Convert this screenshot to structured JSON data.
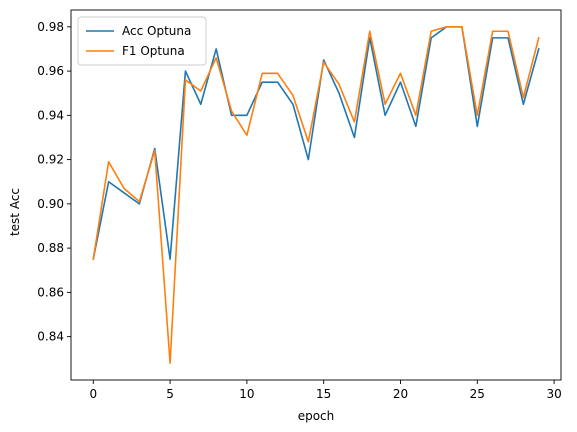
{
  "chart_data": {
    "type": "line",
    "title": "",
    "xlabel": "epoch",
    "ylabel": "test Acc",
    "xlim": [
      -1.45,
      30.45
    ],
    "ylim": [
      0.8204,
      0.9876
    ],
    "xticks": [
      0,
      5,
      10,
      15,
      20,
      25,
      30
    ],
    "xtick_labels": [
      "0",
      "5",
      "10",
      "15",
      "20",
      "25",
      "30"
    ],
    "yticks": [
      0.84,
      0.86,
      0.88,
      0.9,
      0.92,
      0.94,
      0.96,
      0.98
    ],
    "ytick_labels": [
      "0.84",
      "0.86",
      "0.88",
      "0.90",
      "0.92",
      "0.94",
      "0.96",
      "0.98"
    ],
    "grid": false,
    "legend_position": "top-left",
    "x": [
      0,
      1,
      2,
      3,
      4,
      5,
      6,
      7,
      8,
      9,
      10,
      11,
      12,
      13,
      14,
      15,
      16,
      17,
      18,
      19,
      20,
      21,
      22,
      23,
      24,
      25,
      26,
      27,
      28,
      29
    ],
    "series": [
      {
        "name": "Acc Optuna",
        "color": "#1f77b4",
        "values": [
          0.875,
          0.91,
          0.905,
          0.9,
          0.925,
          0.875,
          0.96,
          0.945,
          0.97,
          0.94,
          0.94,
          0.955,
          0.955,
          0.945,
          0.92,
          0.965,
          0.95,
          0.93,
          0.975,
          0.94,
          0.955,
          0.935,
          0.975,
          0.98,
          0.98,
          0.935,
          0.975,
          0.975,
          0.945,
          0.97
        ]
      },
      {
        "name": "F1 Optuna",
        "color": "#ff7f0e",
        "values": [
          0.875,
          0.919,
          0.907,
          0.901,
          0.924,
          0.828,
          0.956,
          0.951,
          0.966,
          0.942,
          0.931,
          0.959,
          0.959,
          0.949,
          0.928,
          0.964,
          0.954,
          0.937,
          0.978,
          0.945,
          0.959,
          0.94,
          0.978,
          0.98,
          0.98,
          0.94,
          0.978,
          0.978,
          0.948,
          0.975
        ]
      }
    ]
  }
}
